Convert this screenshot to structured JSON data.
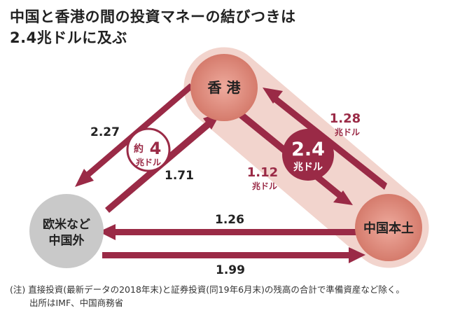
{
  "title": {
    "line1": "中国と香港の間の投資マネーの結びつきは",
    "line2": "2.4兆ドルに及ぶ"
  },
  "nodes": {
    "hongkong": "香 港",
    "mainland": "中国本土",
    "west_line1": "欧米など",
    "west_line2": "中国外"
  },
  "flows": {
    "hk_to_west": "2.27",
    "west_to_hk": "1.71",
    "mainland_to_hk": "1.28",
    "mainland_to_hk_unit": "兆ドル",
    "hk_to_mainland": "1.12",
    "hk_to_mainland_unit": "兆ドル",
    "mainland_to_west": "1.26",
    "west_to_mainland": "1.99"
  },
  "callouts": {
    "total_value": "2.4",
    "total_unit": "兆ドル",
    "west_hk_prefix": "約",
    "west_hk_value": "4",
    "west_hk_unit": "兆ドル"
  },
  "notes": {
    "line1": "(注) 直接投資(最新データの2018年末)と証券投資(同19年6月末)の残高の合計で準備資産など除く。",
    "line2": "出所はIMF、中国商務省"
  },
  "colors": {
    "arrow": "#9a2a46",
    "node_fill": "#e39486",
    "band": "#f1d3cc",
    "dark_label": "#222222"
  }
}
